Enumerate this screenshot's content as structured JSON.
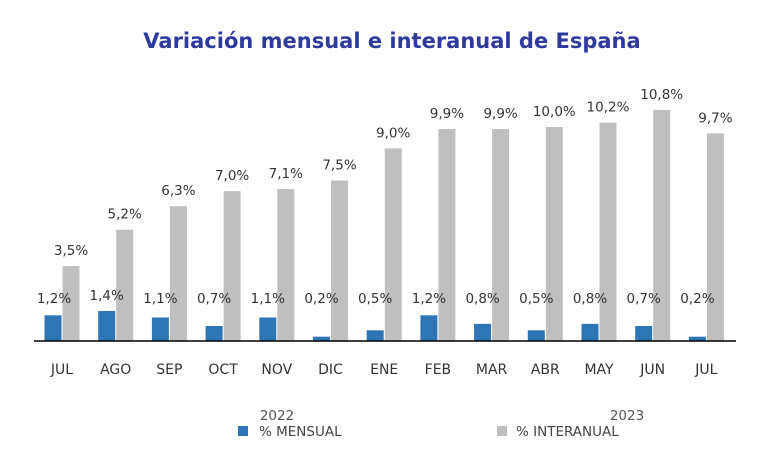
{
  "chart_data": {
    "type": "bar",
    "title": "Variación mensual e interanual de España",
    "categories": [
      "JUL",
      "AGO",
      "SEP",
      "OCT",
      "NOV",
      "DIC",
      "ENE",
      "FEB",
      "MAR",
      "ABR",
      "MAY",
      "JUN",
      "JUL"
    ],
    "series": [
      {
        "name": "% MENSUAL",
        "color": "#2e75b6",
        "values": [
          1.2,
          1.4,
          1.1,
          0.7,
          1.1,
          0.2,
          0.5,
          1.2,
          0.8,
          0.5,
          0.8,
          0.7,
          0.2
        ],
        "labels": [
          "1,2%",
          "1,4%",
          "1,1%",
          "0,7%",
          "1,1%",
          "0,2%",
          "0,5%",
          "1,2%",
          "0,8%",
          "0,5%",
          "0,8%",
          "0,7%",
          "0,2%"
        ]
      },
      {
        "name": "% INTERANUAL",
        "color": "#bfbfbf",
        "values": [
          3.5,
          5.2,
          6.3,
          7.0,
          7.1,
          7.5,
          9.0,
          9.9,
          9.9,
          10.0,
          10.2,
          10.8,
          9.7
        ],
        "labels": [
          "3,5%",
          "5,2%",
          "6,3%",
          "7,0%",
          "7,1%",
          "7,5%",
          "9,0%",
          "9,9%",
          "9,9%",
          "10,0%",
          "10,2%",
          "10,8%",
          "9,7%"
        ]
      }
    ],
    "years": [
      "2022",
      "2023"
    ],
    "ylim": [
      0,
      11
    ],
    "grid": false,
    "legend_position": "bottom"
  }
}
